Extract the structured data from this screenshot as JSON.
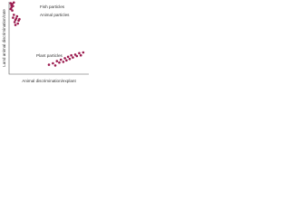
{
  "chart_data": {
    "type": "scatter",
    "x_label": "Animal discrimination/explant",
    "y_label": "Land animal discrimination/rate",
    "xlim": [
      0,
      1
    ],
    "ylim": [
      0,
      1
    ],
    "annotations": [
      "Fish particles",
      "Animal particles",
      "Plant particles"
    ],
    "series": [
      {
        "name": "Fish particles",
        "color": "#9b1b4f",
        "x": [
          0.02,
          0.03,
          0.04,
          0.03,
          0.05,
          0.06,
          0.02,
          0.04
        ],
        "values": [
          0.98,
          0.95,
          0.97,
          0.92,
          0.94,
          0.99,
          0.9,
          0.88
        ]
      },
      {
        "name": "Animal particles",
        "color": "#9b1b4f",
        "x": [
          0.05,
          0.08,
          0.1,
          0.12,
          0.07,
          0.09,
          0.11,
          0.06,
          0.13,
          0.08
        ],
        "values": [
          0.78,
          0.75,
          0.8,
          0.74,
          0.72,
          0.77,
          0.7,
          0.82,
          0.76,
          0.68
        ]
      },
      {
        "name": "Plant particles",
        "color": "#9b1b4f",
        "x": [
          0.5,
          0.55,
          0.58,
          0.6,
          0.63,
          0.65,
          0.68,
          0.7,
          0.72,
          0.74,
          0.76,
          0.78,
          0.8,
          0.83,
          0.85,
          0.88,
          0.9,
          0.93
        ],
        "values": [
          0.13,
          0.15,
          0.12,
          0.18,
          0.16,
          0.2,
          0.17,
          0.22,
          0.19,
          0.24,
          0.21,
          0.26,
          0.23,
          0.27,
          0.25,
          0.29,
          0.26,
          0.3
        ]
      }
    ]
  }
}
